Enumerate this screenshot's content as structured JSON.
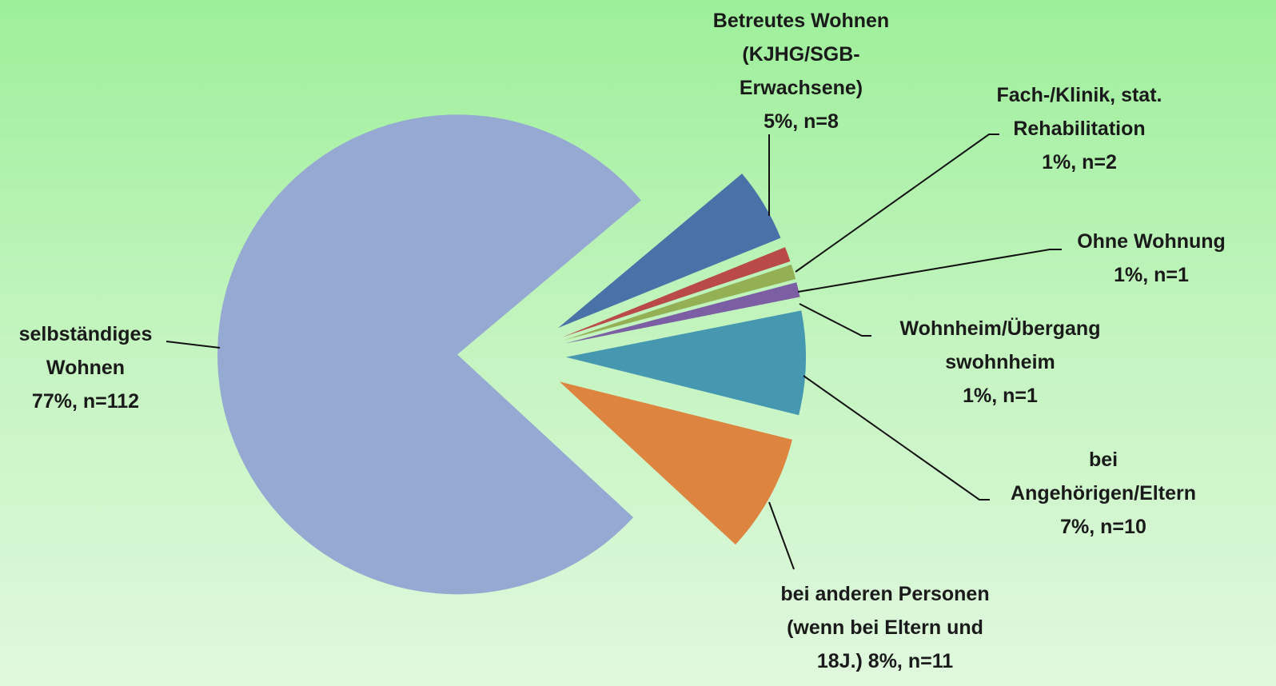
{
  "chart_data": {
    "type": "pie",
    "categories": [
      "Betreutes Wohnen (KJHG/SGB-Erwachsene)",
      "Fach-/Klinik, stat. Rehabilitation",
      "Ohne Wohnung",
      "Wohnheim/Übergang swohnheim",
      "bei Angehörigen/Eltern",
      "bei anderen Personen (wenn bei Eltern und 18J.)",
      "selbständiges Wohnen"
    ],
    "values": [
      5,
      1,
      1,
      1,
      7,
      8,
      77
    ],
    "value_labels": [
      "5%, n=8",
      "1%, n=2",
      "1%, n=1",
      "1%, n=1",
      "7%, n=10",
      "8%, n=11",
      "77%, n=112"
    ],
    "colors": [
      "#4872a8",
      "#b94a48",
      "#93b054",
      "#7b5ea3",
      "#4598b0",
      "#dd8540",
      "#95a9d2"
    ]
  }
}
